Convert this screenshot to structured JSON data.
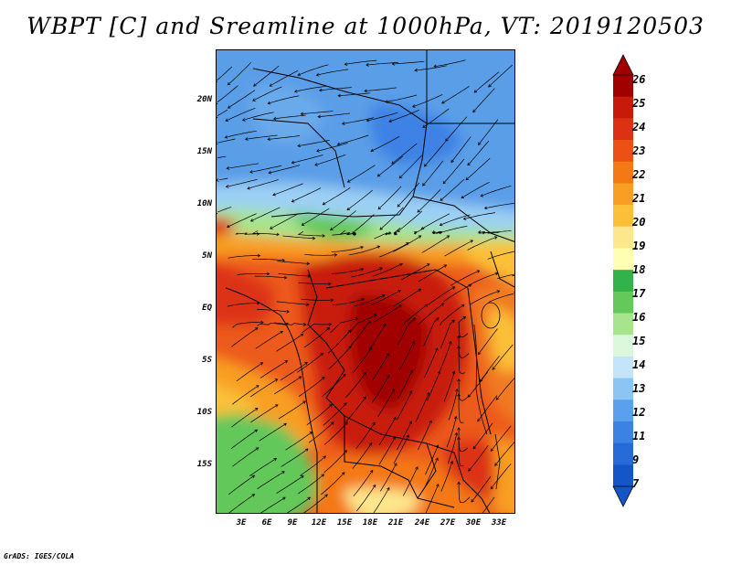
{
  "title": "WBPT [C] and Sreamline at 1000hPa, VT: 2019120503",
  "map": {
    "lat_labels": [
      "20N",
      "15N",
      "10N",
      "5N",
      "EQ",
      "5S",
      "10S",
      "15S"
    ],
    "lon_labels": [
      "3E",
      "6E",
      "9E",
      "12E",
      "15E",
      "18E",
      "21E",
      "24E",
      "27E",
      "30E",
      "33E"
    ]
  },
  "colorbar": {
    "labels": [
      "26",
      "25",
      "24",
      "23",
      "22",
      "21",
      "20",
      "19",
      "18",
      "17",
      "16",
      "15",
      "14",
      "13",
      "12",
      "11",
      "9",
      "7"
    ],
    "colors": [
      "#a00000",
      "#c81a0a",
      "#dc3214",
      "#ec5014",
      "#f47814",
      "#f89e22",
      "#fbc038",
      "#fde68c",
      "#ffffb4",
      "#33b14a",
      "#64c85a",
      "#a6e48e",
      "#dcf8dc",
      "#c4e4fa",
      "#8cc4f4",
      "#5aa0ec",
      "#3c82e4",
      "#286ad8",
      "#1456c8"
    ]
  },
  "credit": "GrADS: IGES/COLA"
}
